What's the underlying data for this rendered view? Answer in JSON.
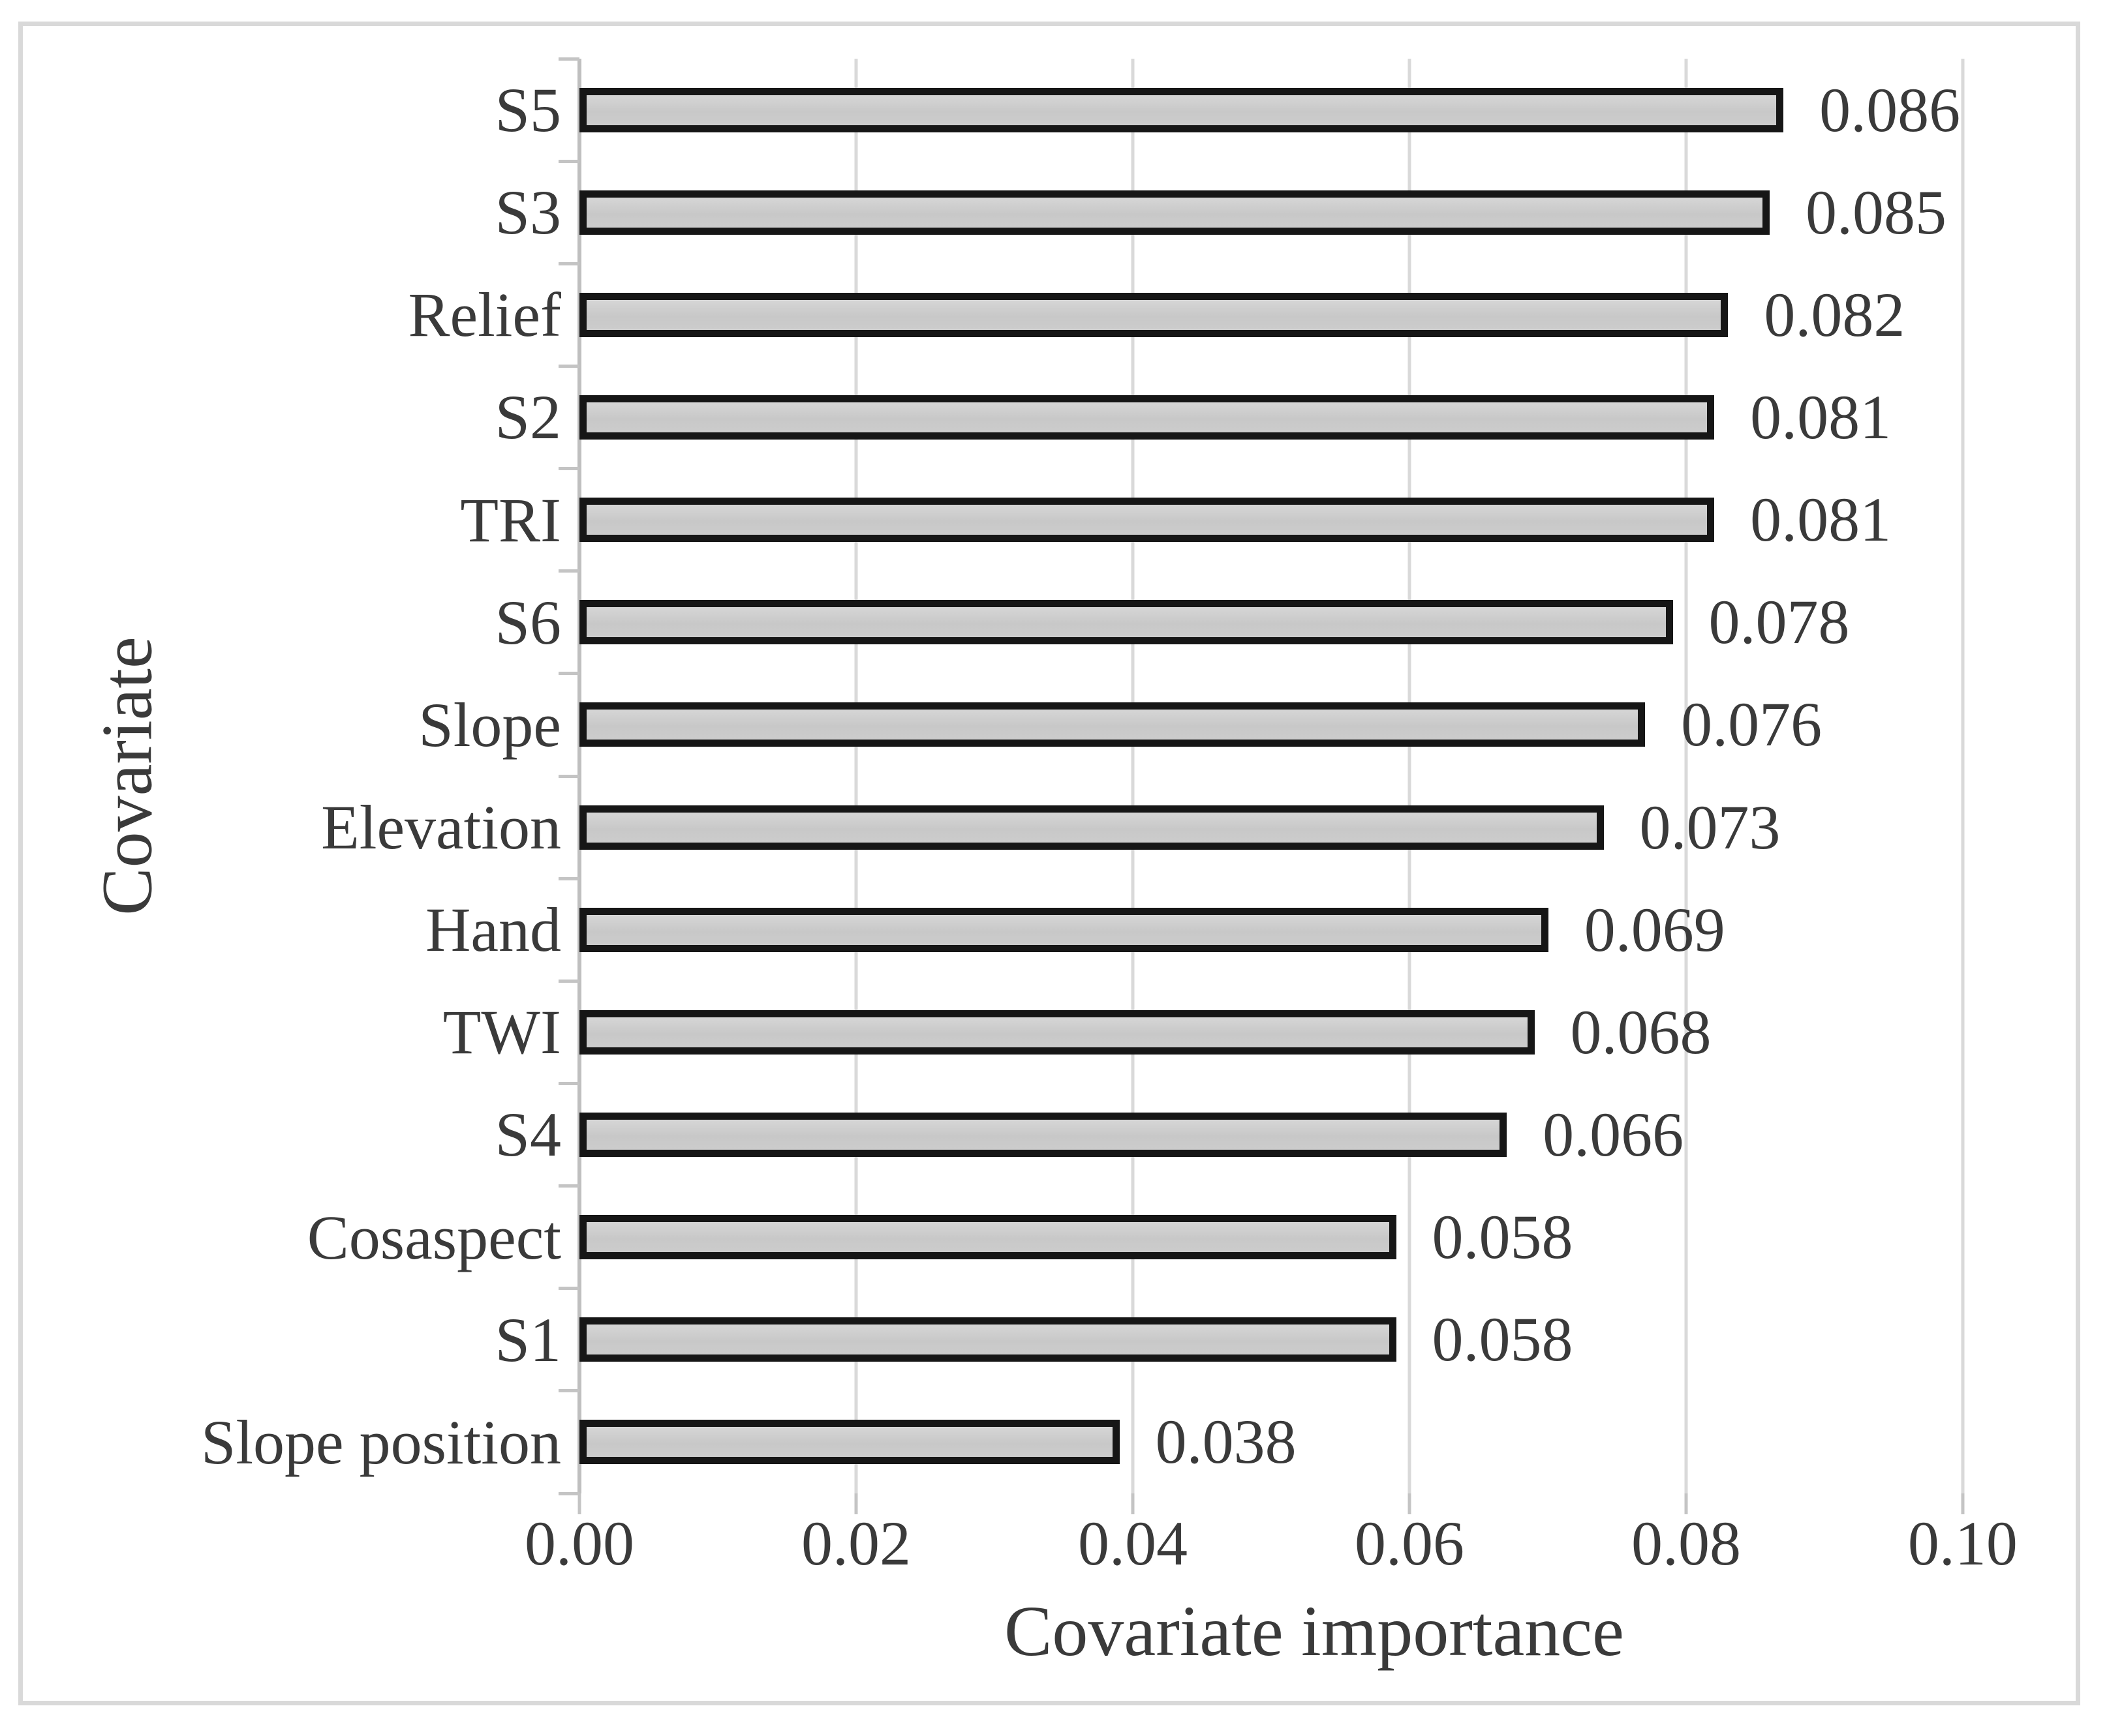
{
  "figure": {
    "background_color": "#ffffff",
    "frame_border_color": "#d9d9d9"
  },
  "chart_data": {
    "type": "bar",
    "orientation": "horizontal",
    "title": "",
    "xlabel": "Covariate importance",
    "ylabel": "Covariate",
    "categories": [
      "S5",
      "S3",
      "Relief",
      "S2",
      "TRI",
      "S6",
      "Slope",
      "Elevation",
      "Hand",
      "TWI",
      "S4",
      "Cosaspect",
      "S1",
      "Slope position"
    ],
    "values": [
      0.086,
      0.085,
      0.082,
      0.081,
      0.081,
      0.078,
      0.076,
      0.073,
      0.069,
      0.068,
      0.066,
      0.058,
      0.058,
      0.038
    ],
    "value_labels": [
      "0.086",
      "0.085",
      "0.082",
      "0.081",
      "0.081",
      "0.078",
      "0.076",
      "0.073",
      "0.069",
      "0.068",
      "0.066",
      "0.058",
      "0.058",
      "0.038"
    ],
    "x_ticks": [
      0,
      0.02,
      0.04,
      0.06,
      0.08,
      0.1
    ],
    "x_tick_labels": [
      "0.00",
      "0.02",
      "0.04",
      "0.06",
      "0.08",
      "0.10"
    ],
    "xlim": [
      0,
      0.10623
    ],
    "grid": "vertical-gridlines-on",
    "legend": "none",
    "bar_fill_color": "#c9c9c9",
    "bar_border_color": "#161616",
    "gridline_color": "#d9d9d9",
    "axis_line_color": "#bfbfbf",
    "text_color": "#3a3a3a"
  }
}
